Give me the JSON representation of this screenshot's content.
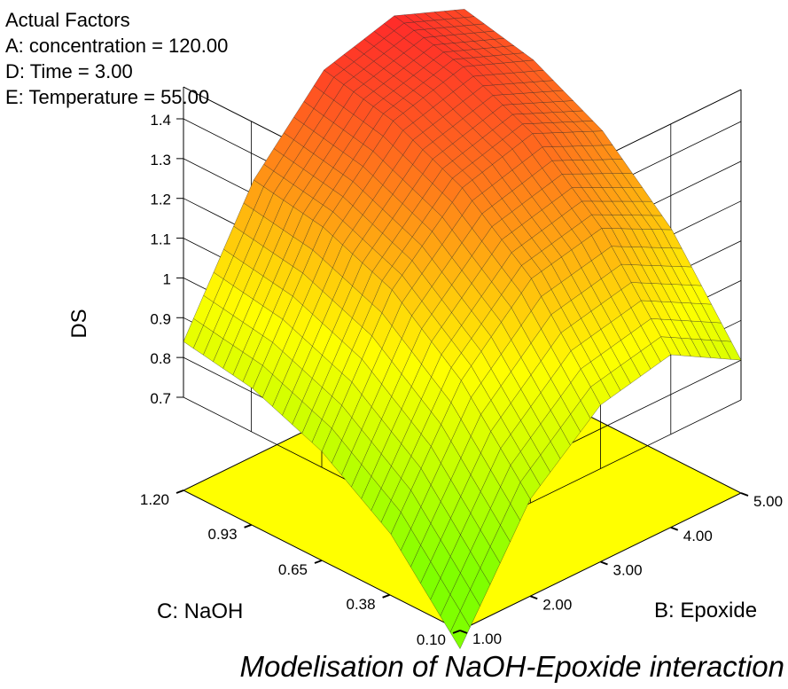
{
  "actual_factors": {
    "heading": "Actual Factors",
    "lines": [
      "A: concentration = 120.00",
      "D: Time = 3.00",
      "E: Temperature = 55.00"
    ]
  },
  "caption": "Modelisation of NaOH-Epoxide interaction",
  "chart_data": {
    "type": "surface",
    "title": "",
    "zlabel": "DS",
    "xlabel": "B: Epoxide",
    "ylabel": "C: NaOH",
    "z_ticks": [
      "0.7",
      "0.8",
      "0.9",
      "1",
      "1.1",
      "1.2",
      "1.3",
      "1.4"
    ],
    "x_ticks": [
      "1.00",
      "2.00",
      "3.00",
      "4.00",
      "5.00"
    ],
    "y_ticks": [
      "0.10",
      "0.38",
      "0.65",
      "0.93",
      "1.20"
    ],
    "xlim": [
      1.0,
      5.0
    ],
    "ylim": [
      0.1,
      1.2
    ],
    "zlim": [
      0.7,
      1.4
    ],
    "grid": true,
    "colors": {
      "low": "#7fff00",
      "mid": "#ffff00",
      "high": "#ff2a2a",
      "floor": "#ffff00",
      "contour": "#f08040",
      "contour_low": "#50d050"
    },
    "surface": {
      "epoxide": [
        1.0,
        2.0,
        3.0,
        4.0,
        5.0
      ],
      "naoh": [
        0.1,
        0.375,
        0.65,
        0.925,
        1.2
      ],
      "ds": [
        [
          0.42,
          0.71,
          0.86,
          0.9,
          0.8
        ],
        [
          0.62,
          0.92,
          1.09,
          1.13,
          1.04
        ],
        [
          0.74,
          1.06,
          1.23,
          1.28,
          1.2
        ],
        [
          0.81,
          1.13,
          1.31,
          1.36,
          1.29
        ],
        [
          0.84,
          1.16,
          1.35,
          1.4,
          1.33
        ]
      ]
    }
  }
}
